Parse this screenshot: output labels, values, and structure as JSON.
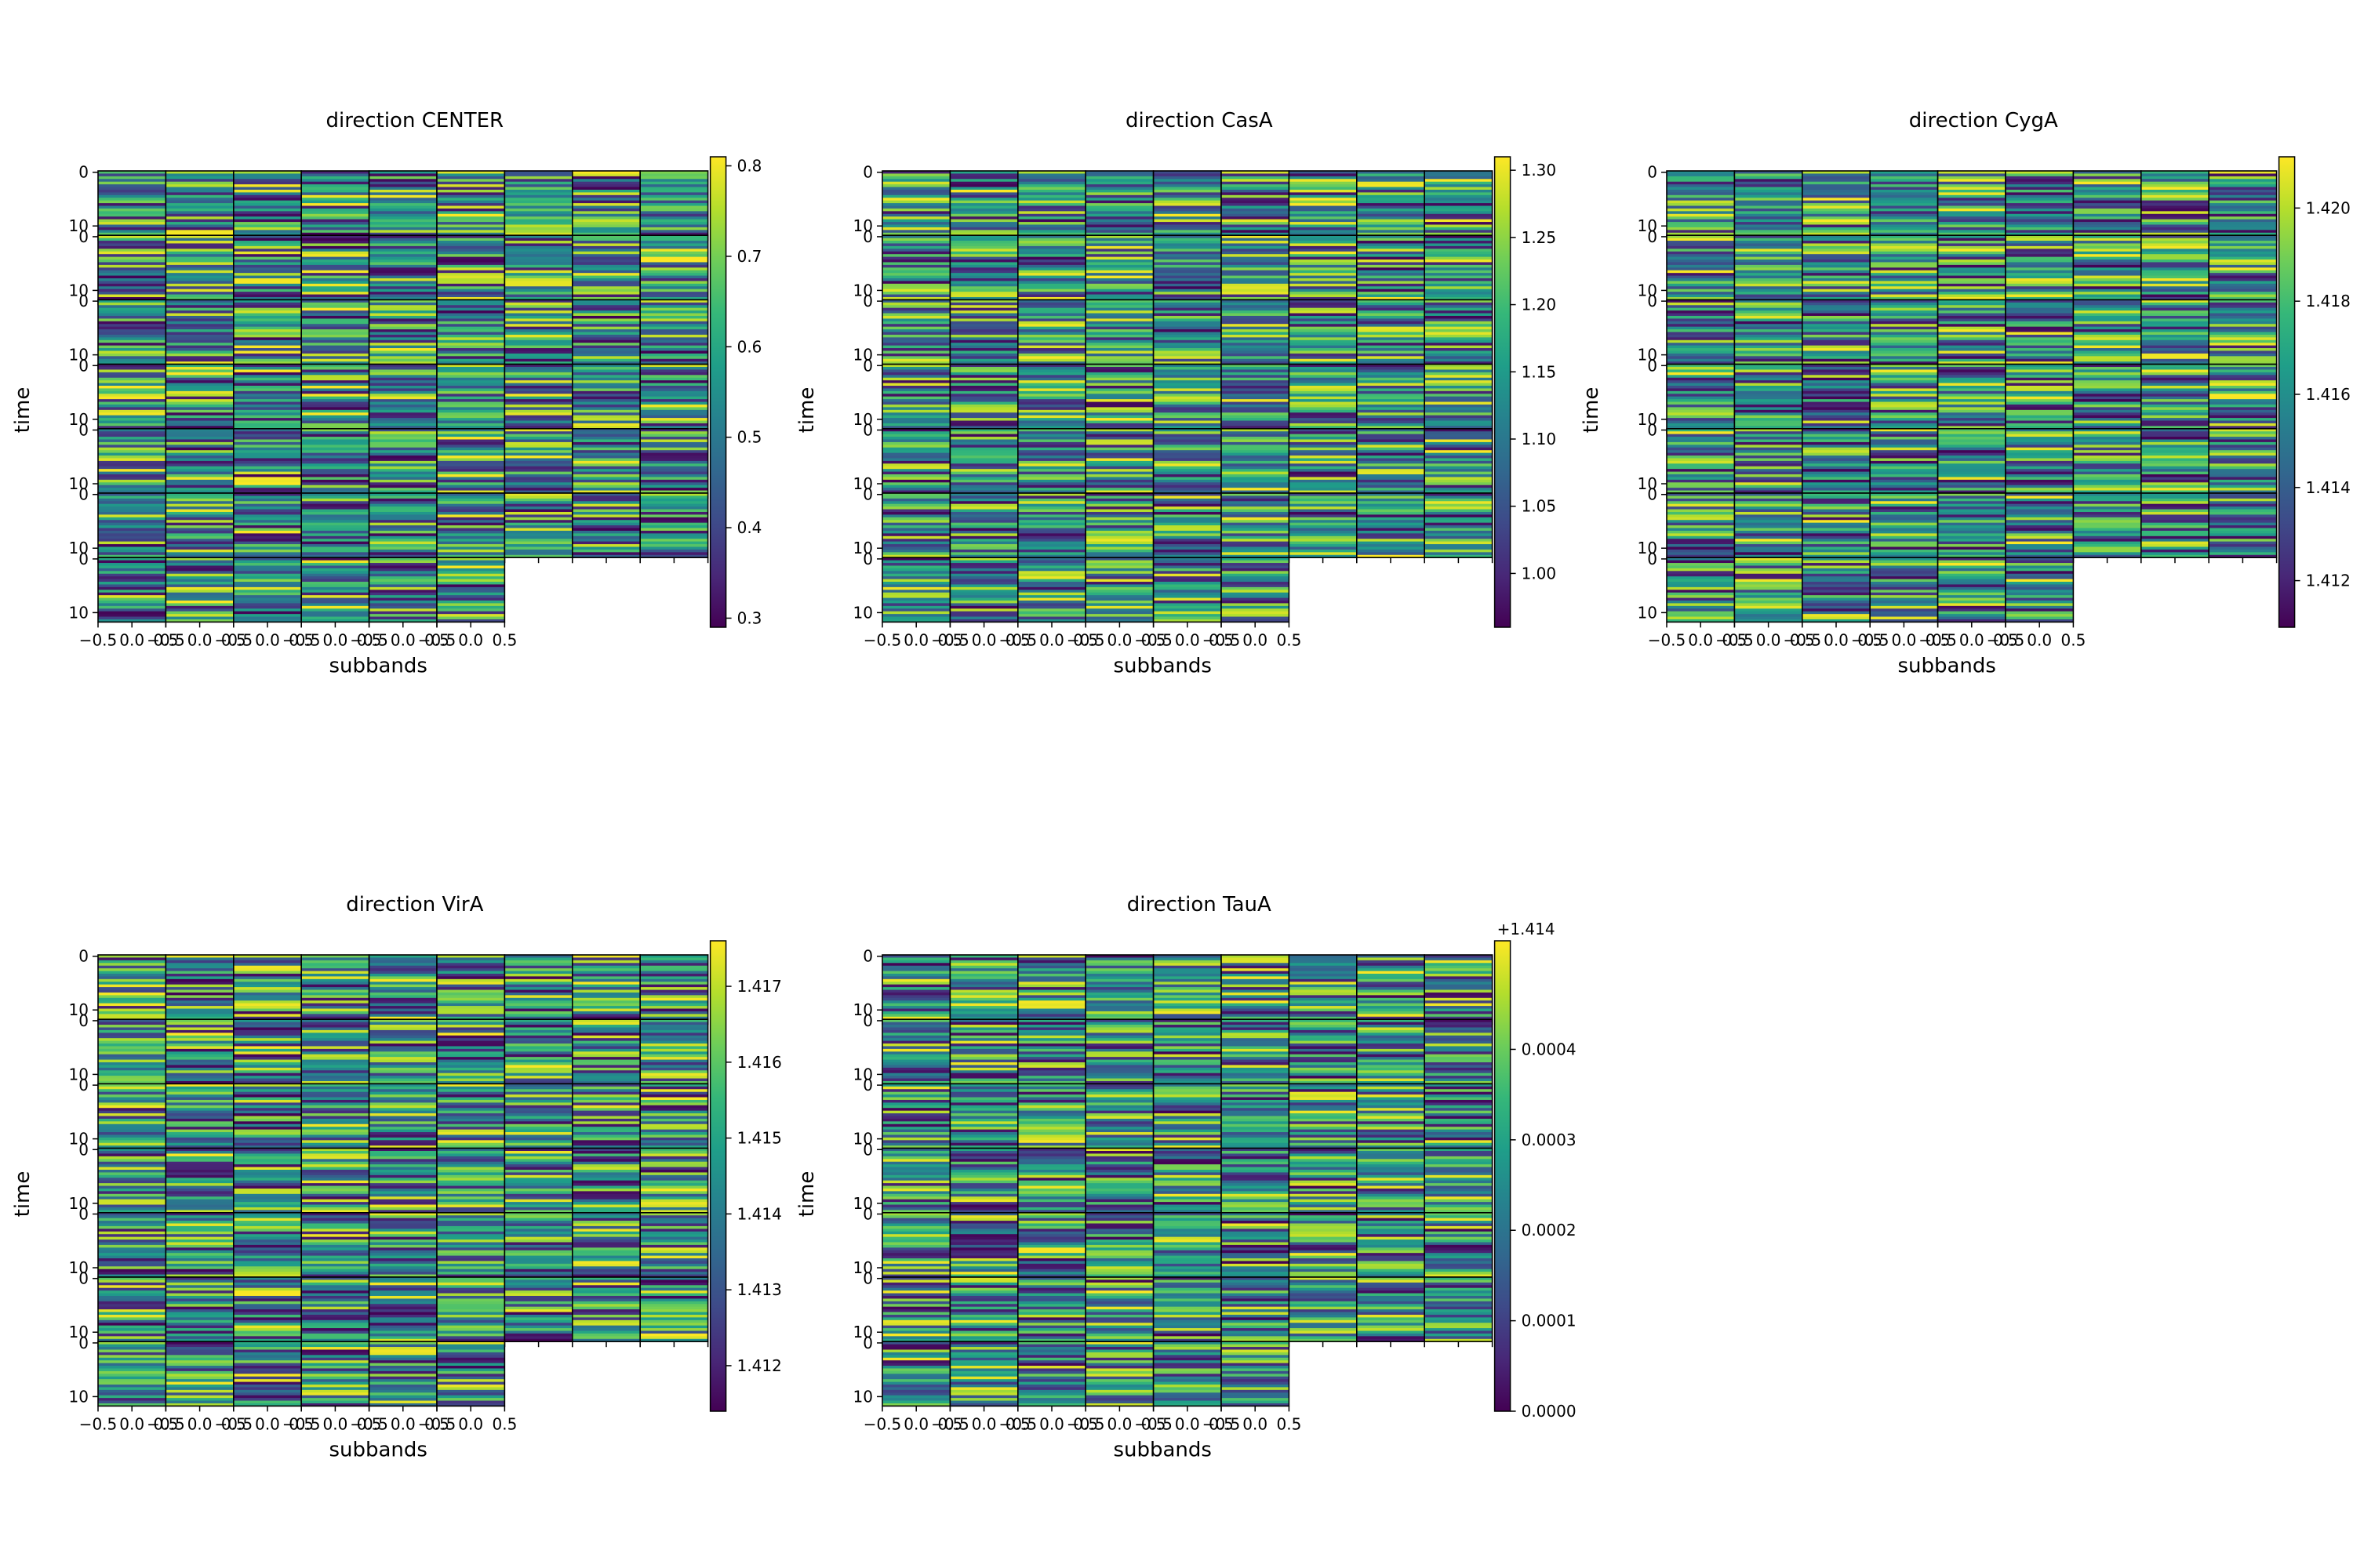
{
  "figure": {
    "xlabel": "subbands",
    "ylabel": "time"
  },
  "chart_data": [
    {
      "type": "heatmap",
      "title": "direction CENTER",
      "xlabel": "subbands",
      "ylabel": "time",
      "colormap": "viridis",
      "grid": false,
      "colorbar": {
        "range": [
          0.29,
          0.81
        ],
        "ticks": [
          "0.3",
          "0.4",
          "0.5",
          "0.6",
          "0.7",
          "0.8"
        ],
        "offset": ""
      },
      "layout": {
        "top_rows": 6,
        "columns": 9,
        "bottom_row_columns": 6,
        "time_ticks": [
          "0",
          "10"
        ],
        "x_tick_labels": [
          "−0.5",
          "0.0",
          "0.5"
        ]
      }
    },
    {
      "type": "heatmap",
      "title": "direction CasA",
      "xlabel": "subbands",
      "ylabel": "time",
      "colormap": "viridis",
      "grid": false,
      "colorbar": {
        "range": [
          0.96,
          1.31
        ],
        "ticks": [
          "1.00",
          "1.05",
          "1.10",
          "1.15",
          "1.20",
          "1.25",
          "1.30"
        ],
        "offset": ""
      },
      "layout": {
        "top_rows": 6,
        "columns": 9,
        "bottom_row_columns": 6,
        "time_ticks": [
          "0",
          "10"
        ],
        "x_tick_labels": [
          "−0.5",
          "0.0",
          "0.5"
        ]
      }
    },
    {
      "type": "heatmap",
      "title": "direction CygA",
      "xlabel": "subbands",
      "ylabel": "time",
      "colormap": "viridis",
      "grid": false,
      "colorbar": {
        "range": [
          1.411,
          1.4211
        ],
        "ticks": [
          "1.412",
          "1.414",
          "1.416",
          "1.418",
          "1.420"
        ],
        "offset": ""
      },
      "layout": {
        "top_rows": 6,
        "columns": 9,
        "bottom_row_columns": 6,
        "time_ticks": [
          "0",
          "10"
        ],
        "x_tick_labels": [
          "−0.5",
          "0.0",
          "0.5"
        ]
      }
    },
    {
      "type": "heatmap",
      "title": "direction VirA",
      "xlabel": "subbands",
      "ylabel": "time",
      "colormap": "viridis",
      "grid": false,
      "colorbar": {
        "range": [
          1.4114,
          1.4176
        ],
        "ticks": [
          "1.412",
          "1.413",
          "1.414",
          "1.415",
          "1.416",
          "1.417"
        ],
        "offset": ""
      },
      "layout": {
        "top_rows": 6,
        "columns": 9,
        "bottom_row_columns": 6,
        "time_ticks": [
          "0",
          "10"
        ],
        "x_tick_labels": [
          "−0.5",
          "0.0",
          "0.5"
        ]
      }
    },
    {
      "type": "heatmap",
      "title": "direction TauA",
      "xlabel": "subbands",
      "ylabel": "time",
      "colormap": "viridis",
      "grid": false,
      "colorbar": {
        "range": [
          0.0,
          0.00052
        ],
        "ticks": [
          "0.0000",
          "0.0001",
          "0.0002",
          "0.0003",
          "0.0004"
        ],
        "offset": "+1.414"
      },
      "layout": {
        "top_rows": 6,
        "columns": 9,
        "bottom_row_columns": 6,
        "time_ticks": [
          "0",
          "10"
        ],
        "x_tick_labels": [
          "−0.5",
          "0.0",
          "0.5"
        ]
      }
    }
  ]
}
